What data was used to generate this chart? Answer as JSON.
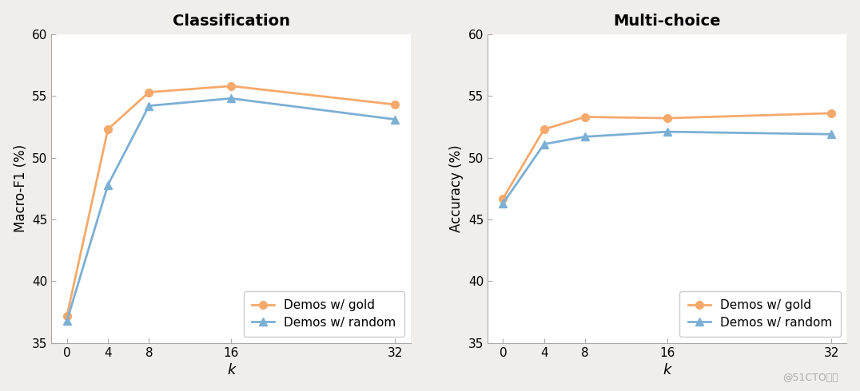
{
  "k_values": [
    0,
    4,
    8,
    16,
    32
  ],
  "classification": {
    "title": "Classification",
    "ylabel": "Macro-F1 (%)",
    "gold": [
      37.2,
      52.3,
      55.3,
      55.8,
      54.3
    ],
    "random": [
      36.8,
      47.8,
      54.2,
      54.8,
      53.1
    ],
    "ylim": [
      35,
      60
    ],
    "yticks": [
      35,
      40,
      45,
      50,
      55,
      60
    ]
  },
  "multichoice": {
    "title": "Multi-choice",
    "ylabel": "Accuracy (%)",
    "gold": [
      46.7,
      52.3,
      53.3,
      53.2,
      53.6
    ],
    "random": [
      46.3,
      51.1,
      51.7,
      52.1,
      51.9
    ],
    "ylim": [
      35,
      60
    ],
    "yticks": [
      35,
      40,
      45,
      50,
      55,
      60
    ]
  },
  "legend_labels": [
    "Demos w/ gold",
    "Demos w/ random"
  ],
  "gold_color": "#F5A96B",
  "random_color": "#7BAFD4",
  "gold_marker": "o",
  "random_marker": "^",
  "marker_size": 7,
  "line_width": 2.0,
  "xlabel": "k",
  "watermark": "@51CTO博客",
  "background_color": "#ffffff",
  "fig_background": "#f0eeea"
}
